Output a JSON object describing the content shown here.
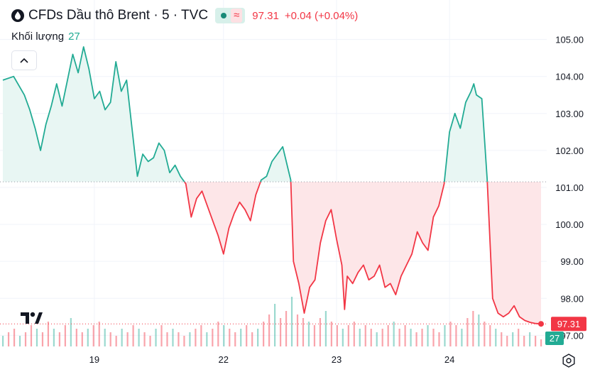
{
  "header": {
    "title": "CFDs Dầu thô Brent · 5 · TVC",
    "wave_symbol": "≈",
    "price": "97.31",
    "change": "+0.04 (+0.04%)"
  },
  "volume_legend": {
    "label": "Khối lượng",
    "value": "27"
  },
  "colors": {
    "up": "#22ab94",
    "down": "#f23645",
    "up_fill": "#e8f6f3",
    "down_fill": "#fde6e8",
    "grid": "#f0f3fa",
    "text": "#131722"
  },
  "icons": [
    "droplet-icon",
    "chevron-up-icon",
    "tradingview-logo-icon",
    "settings-icon"
  ],
  "chart_data": {
    "type": "area",
    "baseline": 101.15,
    "ylim": [
      96.7,
      105.3
    ],
    "y_ticks": [
      97.0,
      98.0,
      99.0,
      100.0,
      101.0,
      102.0,
      103.0,
      104.0,
      105.0
    ],
    "y_tick_labels": [
      "97.00",
      "98.00",
      "99.00",
      "100.00",
      "101.00",
      "102.00",
      "103.00",
      "104.00",
      "105.00"
    ],
    "x_ticks": [
      {
        "x": 0.17,
        "label": "19"
      },
      {
        "x": 0.41,
        "label": "22"
      },
      {
        "x": 0.62,
        "label": "23"
      },
      {
        "x": 0.83,
        "label": "24"
      }
    ],
    "last_price_label": "97.31",
    "last_volume_label": "27",
    "series": [
      {
        "x": [
          0.0,
          0.02,
          0.04,
          0.05,
          0.06,
          0.07,
          0.08,
          0.09,
          0.1,
          0.11,
          0.12,
          0.13,
          0.14,
          0.15,
          0.16,
          0.17,
          0.18,
          0.19,
          0.2,
          0.21,
          0.22,
          0.23,
          0.24,
          0.25,
          0.26,
          0.27,
          0.28,
          0.29,
          0.3,
          0.31,
          0.32,
          0.33,
          0.34,
          0.35,
          0.36,
          0.37,
          0.38,
          0.39,
          0.4,
          0.41,
          0.42,
          0.43,
          0.44,
          0.45,
          0.46,
          0.47,
          0.48,
          0.49,
          0.5,
          0.51,
          0.52,
          0.53,
          0.535,
          0.54,
          0.55,
          0.56,
          0.57,
          0.58,
          0.59,
          0.6,
          0.61,
          0.62,
          0.63,
          0.635,
          0.64,
          0.65,
          0.66,
          0.67,
          0.68,
          0.69,
          0.7,
          0.71,
          0.72,
          0.73,
          0.74,
          0.75,
          0.76,
          0.77,
          0.78,
          0.79,
          0.8,
          0.81,
          0.82,
          0.83,
          0.84,
          0.85,
          0.86,
          0.87,
          0.875,
          0.88,
          0.89,
          0.9,
          0.91,
          0.92,
          0.93,
          0.94,
          0.95,
          0.96,
          0.97,
          0.98,
          0.99,
          1.0
        ],
        "y": [
          103.9,
          104.0,
          103.5,
          103.1,
          102.6,
          102.0,
          102.7,
          103.2,
          103.8,
          103.2,
          103.9,
          104.6,
          104.1,
          104.8,
          104.2,
          103.4,
          103.6,
          103.1,
          103.3,
          104.4,
          103.6,
          103.9,
          102.6,
          101.3,
          101.9,
          101.7,
          101.8,
          102.2,
          102.0,
          101.4,
          101.6,
          101.3,
          101.1,
          100.2,
          100.7,
          100.9,
          100.5,
          100.1,
          99.7,
          99.2,
          99.9,
          100.3,
          100.6,
          100.4,
          100.1,
          100.8,
          101.2,
          101.3,
          101.7,
          101.9,
          102.1,
          101.5,
          101.2,
          99.0,
          98.4,
          97.6,
          98.3,
          98.5,
          99.5,
          100.1,
          100.4,
          99.6,
          98.9,
          97.7,
          98.6,
          98.4,
          98.7,
          98.9,
          98.5,
          98.6,
          98.9,
          98.3,
          98.4,
          98.1,
          98.6,
          98.9,
          99.2,
          99.8,
          99.5,
          99.3,
          100.2,
          100.5,
          101.1,
          102.5,
          103.0,
          102.6,
          103.3,
          103.6,
          103.8,
          103.5,
          103.4,
          101.2,
          98.0,
          97.6,
          97.5,
          97.6,
          97.8,
          97.5,
          97.4,
          97.35,
          97.32,
          97.31
        ]
      }
    ],
    "volume": [
      3,
      4,
      5,
      3,
      4,
      6,
      5,
      4,
      7,
      5,
      4,
      6,
      8,
      5,
      4,
      5,
      6,
      7,
      5,
      4,
      3,
      5,
      4,
      6,
      5,
      4,
      3,
      5,
      6,
      4,
      5,
      4,
      3,
      4,
      5,
      6,
      4,
      5,
      7,
      6,
      5,
      4,
      5,
      6,
      4,
      5,
      7,
      9,
      12,
      8,
      10,
      14,
      9,
      8,
      7,
      6,
      8,
      10,
      7,
      6,
      5,
      6,
      7,
      5,
      6,
      5,
      4,
      5,
      6,
      7,
      5,
      6,
      5,
      4,
      5,
      6,
      5,
      4,
      6,
      7,
      6,
      5,
      8,
      10,
      9,
      7,
      6,
      5,
      4,
      3,
      4,
      5,
      3,
      4,
      3,
      2
    ]
  }
}
